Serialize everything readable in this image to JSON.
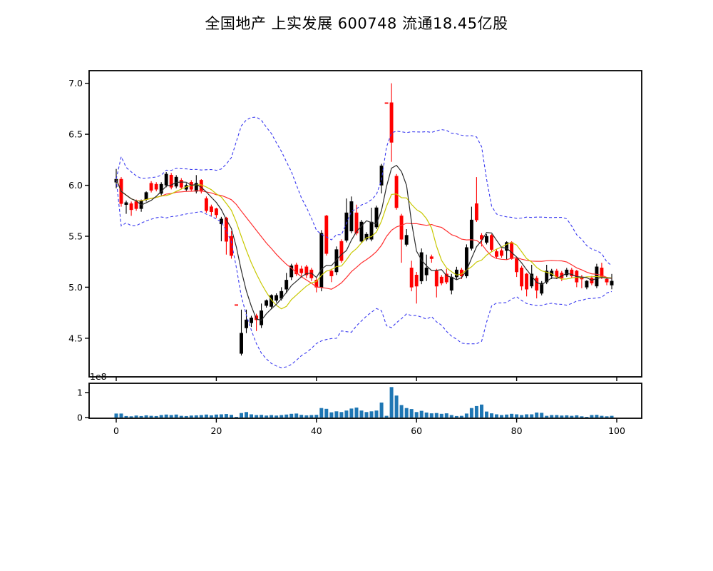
{
  "title": "全国地产  上实发展  600748  流通18.45亿股",
  "chart_data": {
    "type": "candlestick",
    "title": "全国地产  上实发展  600748  流通18.45亿股",
    "xlabel": "",
    "ylabel": "",
    "grid": false,
    "legend": "none",
    "x_axis": {
      "ticks": [
        0,
        20,
        40,
        60,
        80,
        100
      ],
      "lim": [
        -5.4,
        105.0
      ]
    },
    "price_axis": {
      "ticks": [
        7.0,
        6.5,
        6.0,
        5.5,
        5.0,
        4.5
      ],
      "lim": [
        4.12,
        7.13
      ]
    },
    "volume_axis": {
      "ticks": [
        0,
        1
      ],
      "lim": [
        0,
        1.4
      ],
      "offset_label": "1e8",
      "unit": 100000000
    },
    "colors": {
      "up": "#000000",
      "down": "#ff0000",
      "ma5": "#2b2b2b",
      "ma10": "#c8c800",
      "ma20": "#ff3030",
      "bollinger": "#3a3af0",
      "volume": "#1f77b4",
      "frame": "#000000",
      "background": "#ffffff"
    },
    "overlays": [
      {
        "name": "ma5",
        "type": "sma",
        "window": 5
      },
      {
        "name": "ma10",
        "type": "sma",
        "window": 10
      },
      {
        "name": "ma20",
        "type": "sma",
        "window": 20
      },
      {
        "name": "bollinger",
        "type": "bollinger",
        "window": 20,
        "k": 2,
        "style": "dashed"
      }
    ],
    "ohlc": [
      [
        6.03,
        6.16,
        5.97,
        6.06
      ],
      [
        6.06,
        6.08,
        5.79,
        5.82
      ],
      [
        5.81,
        5.85,
        5.72,
        5.83
      ],
      [
        5.82,
        5.84,
        5.7,
        5.76
      ],
      [
        5.84,
        5.86,
        5.75,
        5.77
      ],
      [
        5.77,
        5.86,
        5.74,
        5.85
      ],
      [
        5.86,
        5.94,
        5.84,
        5.93
      ],
      [
        6.02,
        6.04,
        5.93,
        5.95
      ],
      [
        6.01,
        6.03,
        5.94,
        5.96
      ],
      [
        5.92,
        6.03,
        5.9,
        6.01
      ],
      [
        6.0,
        6.13,
        5.98,
        6.11
      ],
      [
        6.1,
        6.12,
        5.96,
        5.98
      ],
      [
        5.99,
        6.1,
        5.97,
        6.08
      ],
      [
        6.05,
        6.07,
        5.96,
        5.98
      ],
      [
        5.96,
        6.02,
        5.94,
        6.0
      ],
      [
        6.03,
        6.05,
        5.94,
        5.96
      ],
      [
        5.94,
        6.1,
        5.92,
        6.02
      ],
      [
        6.05,
        6.06,
        5.92,
        5.94
      ],
      [
        5.87,
        5.89,
        5.73,
        5.75
      ],
      [
        5.79,
        5.81,
        5.7,
        5.74
      ],
      [
        5.77,
        5.78,
        5.68,
        5.71
      ],
      [
        5.62,
        5.69,
        5.45,
        5.67
      ],
      [
        5.68,
        5.69,
        5.32,
        5.45
      ],
      [
        5.5,
        5.55,
        5.28,
        5.31
      ],
      [
        4.83,
        4.83,
        4.83,
        4.83
      ],
      [
        4.35,
        4.78,
        4.33,
        4.55
      ],
      [
        4.6,
        4.78,
        4.55,
        4.68
      ],
      [
        4.65,
        4.72,
        4.61,
        4.7
      ],
      [
        4.72,
        4.74,
        4.57,
        4.68
      ],
      [
        4.63,
        4.84,
        4.6,
        4.77
      ],
      [
        4.82,
        4.88,
        4.8,
        4.87
      ],
      [
        4.81,
        4.93,
        4.79,
        4.92
      ],
      [
        4.87,
        4.94,
        4.85,
        4.92
      ],
      [
        4.89,
        5.0,
        4.87,
        4.96
      ],
      [
        4.98,
        5.14,
        4.94,
        5.07
      ],
      [
        5.1,
        5.23,
        5.07,
        5.21
      ],
      [
        5.22,
        5.24,
        5.11,
        5.13
      ],
      [
        5.18,
        5.21,
        5.11,
        5.14
      ],
      [
        5.2,
        5.22,
        5.09,
        5.12
      ],
      [
        5.17,
        5.19,
        5.06,
        5.09
      ],
      [
        5.07,
        5.09,
        4.95,
        5.0
      ],
      [
        5.0,
        5.56,
        4.96,
        5.53
      ],
      [
        5.7,
        5.71,
        5.31,
        5.33
      ],
      [
        5.16,
        5.18,
        5.05,
        5.11
      ],
      [
        5.15,
        5.4,
        5.12,
        5.37
      ],
      [
        5.45,
        5.47,
        5.24,
        5.26
      ],
      [
        5.46,
        5.87,
        5.44,
        5.73
      ],
      [
        5.55,
        5.89,
        5.53,
        5.84
      ],
      [
        5.73,
        5.81,
        5.51,
        5.53
      ],
      [
        5.45,
        5.66,
        5.43,
        5.64
      ],
      [
        5.47,
        5.54,
        5.45,
        5.52
      ],
      [
        5.47,
        5.78,
        5.45,
        5.64
      ],
      [
        5.59,
        5.8,
        5.57,
        5.78
      ],
      [
        6.0,
        6.21,
        5.92,
        6.19
      ],
      [
        6.81,
        6.81,
        6.81,
        6.81
      ],
      [
        6.81,
        7.0,
        6.23,
        6.42
      ],
      [
        6.09,
        6.11,
        5.76,
        5.78
      ],
      [
        5.7,
        5.72,
        5.24,
        5.47
      ],
      [
        5.42,
        5.57,
        5.4,
        5.51
      ],
      [
        5.19,
        5.26,
        4.96,
        5.0
      ],
      [
        5.12,
        5.15,
        4.84,
        5.01
      ],
      [
        5.06,
        5.38,
        5.03,
        5.34
      ],
      [
        5.12,
        5.32,
        5.06,
        5.19
      ],
      [
        5.3,
        5.32,
        5.24,
        5.28
      ],
      [
        5.16,
        5.18,
        4.9,
        5.01
      ],
      [
        5.1,
        5.12,
        5.02,
        5.04
      ],
      [
        5.13,
        5.18,
        5.03,
        5.05
      ],
      [
        4.97,
        5.13,
        4.93,
        5.1
      ],
      [
        5.1,
        5.2,
        5.07,
        5.17
      ],
      [
        5.17,
        5.19,
        5.08,
        5.11
      ],
      [
        5.11,
        5.42,
        5.09,
        5.39
      ],
      [
        5.38,
        5.79,
        5.36,
        5.66
      ],
      [
        5.82,
        6.08,
        5.64,
        5.66
      ],
      [
        5.51,
        5.53,
        5.4,
        5.47
      ],
      [
        5.44,
        5.52,
        5.42,
        5.5
      ],
      [
        5.51,
        5.52,
        5.35,
        5.37
      ],
      [
        5.35,
        5.37,
        5.28,
        5.3
      ],
      [
        5.36,
        5.38,
        5.29,
        5.31
      ],
      [
        5.36,
        5.45,
        5.27,
        5.44
      ],
      [
        5.44,
        5.45,
        5.27,
        5.28
      ],
      [
        5.28,
        5.3,
        5.1,
        5.15
      ],
      [
        5.19,
        5.21,
        4.97,
        5.01
      ],
      [
        5.13,
        5.14,
        4.91,
        4.98
      ],
      [
        5.01,
        5.22,
        4.99,
        5.13
      ],
      [
        5.09,
        5.11,
        4.89,
        4.97
      ],
      [
        4.94,
        5.06,
        4.92,
        5.04
      ],
      [
        5.05,
        5.22,
        5.03,
        5.16
      ],
      [
        5.11,
        5.18,
        5.08,
        5.16
      ],
      [
        5.16,
        5.18,
        5.08,
        5.1
      ],
      [
        5.14,
        5.16,
        5.06,
        5.09
      ],
      [
        5.12,
        5.19,
        5.1,
        5.17
      ],
      [
        5.17,
        5.19,
        5.09,
        5.11
      ],
      [
        5.16,
        5.17,
        5.0,
        5.05
      ],
      [
        5.1,
        5.12,
        4.99,
        5.08
      ],
      [
        5.0,
        5.07,
        4.98,
        5.06
      ],
      [
        5.09,
        5.11,
        5.02,
        5.04
      ],
      [
        5.01,
        5.23,
        4.99,
        5.2
      ],
      [
        5.19,
        5.24,
        5.08,
        5.1
      ],
      [
        5.08,
        5.1,
        5.02,
        5.05
      ],
      [
        5.02,
        5.13,
        4.98,
        5.06
      ]
    ],
    "volume_1e8": [
      0.16,
      0.16,
      0.06,
      0.05,
      0.08,
      0.06,
      0.09,
      0.07,
      0.06,
      0.1,
      0.12,
      0.1,
      0.12,
      0.07,
      0.06,
      0.08,
      0.09,
      0.1,
      0.12,
      0.09,
      0.12,
      0.13,
      0.14,
      0.11,
      0.03,
      0.18,
      0.22,
      0.13,
      0.1,
      0.11,
      0.08,
      0.1,
      0.08,
      0.1,
      0.12,
      0.15,
      0.16,
      0.11,
      0.09,
      0.1,
      0.11,
      0.38,
      0.35,
      0.21,
      0.25,
      0.22,
      0.28,
      0.36,
      0.4,
      0.28,
      0.22,
      0.25,
      0.28,
      0.6,
      0.07,
      1.22,
      0.88,
      0.5,
      0.38,
      0.34,
      0.22,
      0.27,
      0.2,
      0.17,
      0.18,
      0.15,
      0.17,
      0.1,
      0.06,
      0.07,
      0.16,
      0.38,
      0.46,
      0.52,
      0.24,
      0.17,
      0.13,
      0.1,
      0.12,
      0.15,
      0.13,
      0.1,
      0.13,
      0.13,
      0.2,
      0.19,
      0.07,
      0.1,
      0.1,
      0.08,
      0.09,
      0.07,
      0.09,
      0.05,
      0.03,
      0.1,
      0.11,
      0.07,
      0.05,
      0.07
    ]
  }
}
